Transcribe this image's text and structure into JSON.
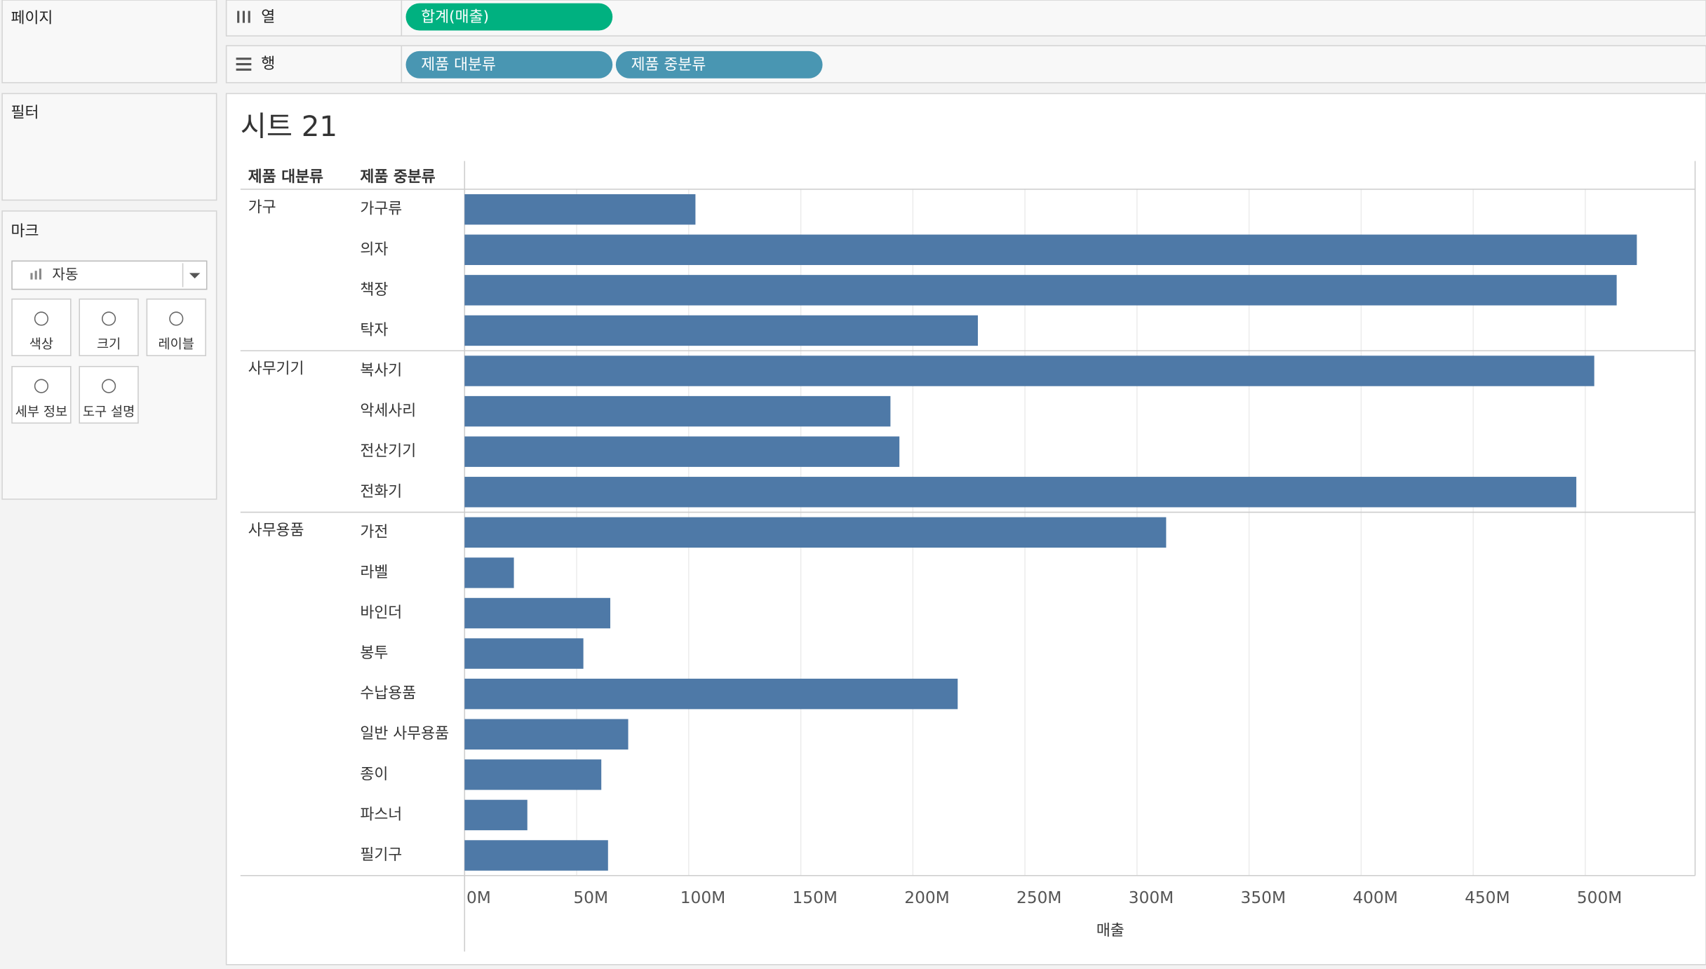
{
  "ui": {
    "pages": "페이지",
    "filters": "필터",
    "marks": "마크",
    "mark_type": "자동",
    "mark_buttons": [
      "색상",
      "크기",
      "레이블",
      "세부 정보",
      "도구 설명"
    ],
    "columns_shelf": {
      "label": "열",
      "pills": [
        "합계(매출)"
      ]
    },
    "rows_shelf": {
      "label": "행",
      "pills": [
        "제품 대분류",
        "제품 중분류"
      ]
    }
  },
  "chart_data": {
    "type": "bar",
    "title": "시트 21",
    "row_headers": [
      "제품 대분류",
      "제품 중분류"
    ],
    "x_label": "매출",
    "color": "#4e79a7",
    "grid": true,
    "groups": [
      {
        "name": "가구",
        "categories": [
          "가구류",
          "의자",
          "책장",
          "탁자"
        ],
        "values": [
          103,
          523,
          514,
          229
        ]
      },
      {
        "name": "사무기기",
        "categories": [
          "복사기",
          "악세사리",
          "전산기기",
          "전화기"
        ],
        "values": [
          504,
          190,
          194,
          496
        ]
      },
      {
        "name": "사무용품",
        "categories": [
          "가전",
          "라벨",
          "바인더",
          "봉투",
          "수납용품",
          "일반 사무용품",
          "종이",
          "파스너",
          "필기구"
        ],
        "values": [
          313,
          22,
          65,
          53,
          220,
          73,
          61,
          28,
          64
        ]
      }
    ],
    "xlim": [
      0,
      549
    ],
    "xticks": [
      {
        "value": 0,
        "label": "0M"
      },
      {
        "value": 50,
        "label": "50M"
      },
      {
        "value": 100,
        "label": "100M"
      },
      {
        "value": 150,
        "label": "150M"
      },
      {
        "value": 200,
        "label": "200M"
      },
      {
        "value": 250,
        "label": "250M"
      },
      {
        "value": 300,
        "label": "300M"
      },
      {
        "value": 350,
        "label": "350M"
      },
      {
        "value": 400,
        "label": "400M"
      },
      {
        "value": 450,
        "label": "450M"
      },
      {
        "value": 500,
        "label": "500M"
      }
    ]
  }
}
